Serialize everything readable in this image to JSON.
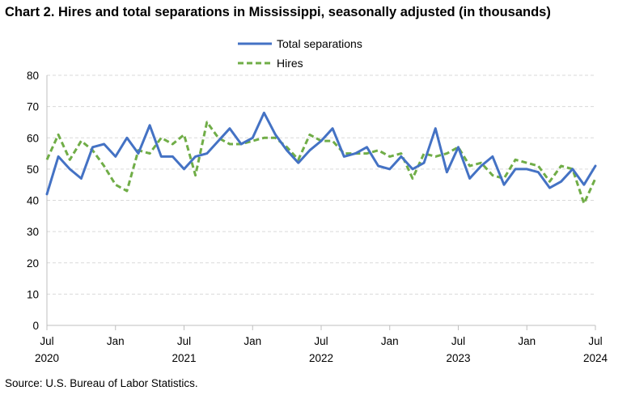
{
  "title": "Chart 2. Hires and total separations in Mississippi, seasonally adjusted (in thousands)",
  "source": "Source: U.S. Bureau of Labor Statistics.",
  "colors": {
    "separations": "#4472c4",
    "hires": "#70ad47",
    "grid": "#d9d9d9",
    "axis": "#bfbfbf"
  },
  "chart_data": {
    "type": "line",
    "title": "Chart 2. Hires and total separations in Mississippi, seasonally adjusted (in thousands)",
    "xlabel": "",
    "ylabel": "",
    "ylim": [
      0,
      80
    ],
    "yticks": [
      0,
      10,
      20,
      30,
      40,
      50,
      60,
      70,
      80
    ],
    "grid": "horizontal dashed",
    "legend_position": "top-center",
    "x": [
      "2020-07",
      "2020-08",
      "2020-09",
      "2020-10",
      "2020-11",
      "2020-12",
      "2021-01",
      "2021-02",
      "2021-03",
      "2021-04",
      "2021-05",
      "2021-06",
      "2021-07",
      "2021-08",
      "2021-09",
      "2021-10",
      "2021-11",
      "2021-12",
      "2022-01",
      "2022-02",
      "2022-03",
      "2022-04",
      "2022-05",
      "2022-06",
      "2022-07",
      "2022-08",
      "2022-09",
      "2022-10",
      "2022-11",
      "2022-12",
      "2023-01",
      "2023-02",
      "2023-03",
      "2023-04",
      "2023-05",
      "2023-06",
      "2023-07",
      "2023-08",
      "2023-09",
      "2023-10",
      "2023-11",
      "2023-12",
      "2024-01",
      "2024-02",
      "2024-03",
      "2024-04",
      "2024-05",
      "2024-06",
      "2024-07"
    ],
    "x_tick_labels": [
      {
        "month": "Jul",
        "year": "2020",
        "index": 0
      },
      {
        "month": "Jan",
        "year": "",
        "index": 6
      },
      {
        "month": "Jul",
        "year": "2021",
        "index": 12
      },
      {
        "month": "Jan",
        "year": "",
        "index": 18
      },
      {
        "month": "Jul",
        "year": "2022",
        "index": 24
      },
      {
        "month": "Jan",
        "year": "",
        "index": 30
      },
      {
        "month": "Jul",
        "year": "2023",
        "index": 36
      },
      {
        "month": "Jan",
        "year": "",
        "index": 42
      },
      {
        "month": "Jul",
        "year": "2024",
        "index": 48
      }
    ],
    "series": [
      {
        "name": "Total separations",
        "style": "solid",
        "values": [
          42,
          54,
          50,
          47,
          57,
          58,
          54,
          60,
          55,
          64,
          54,
          54,
          50,
          54,
          55,
          59,
          63,
          58,
          60,
          68,
          61,
          56,
          52,
          56,
          59,
          63,
          54,
          55,
          57,
          51,
          50,
          54,
          50,
          52,
          63,
          49,
          57,
          47,
          51,
          54,
          45,
          50,
          50,
          49,
          44,
          46,
          50,
          45,
          51
        ]
      },
      {
        "name": "Hires",
        "style": "dashed",
        "values": [
          53,
          61,
          53,
          59,
          56,
          51,
          45,
          43,
          56,
          55,
          60,
          58,
          61,
          48,
          65,
          60,
          58,
          58,
          59,
          60,
          60,
          57,
          53,
          61,
          59,
          59,
          55,
          55,
          55,
          56,
          54,
          55,
          47,
          55,
          54,
          55,
          57,
          51,
          52,
          48,
          47,
          53,
          52,
          51,
          46,
          51,
          50,
          39,
          47
        ]
      }
    ]
  }
}
